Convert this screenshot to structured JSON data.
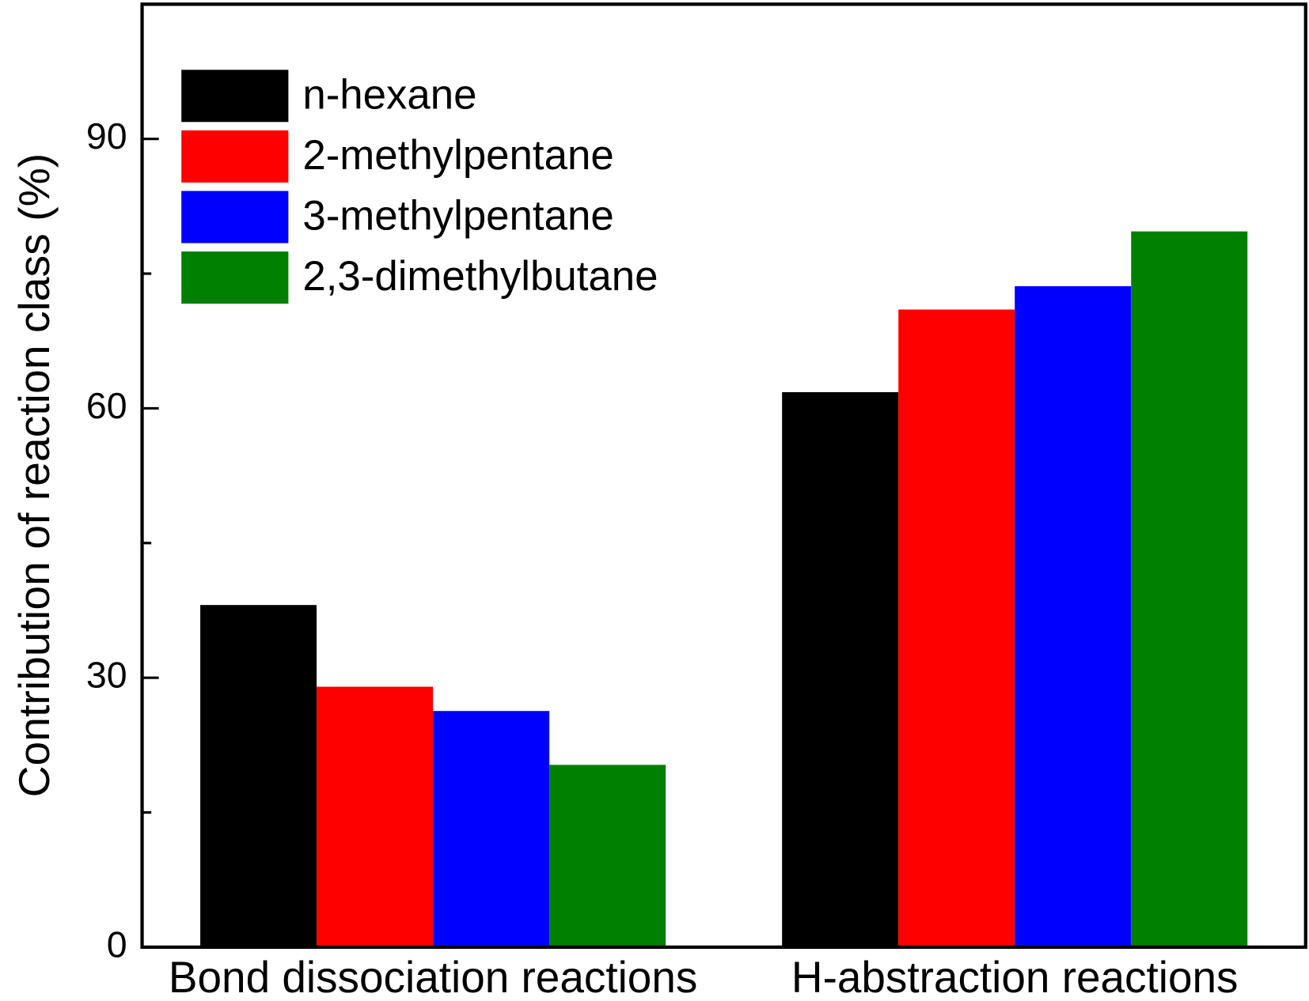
{
  "chart_data": {
    "type": "bar",
    "y_label": "Contribution of reaction class (%)",
    "categories": [
      "Bond dissociation reactions",
      "H-abstraction reactions"
    ],
    "series": [
      {
        "name": "n-hexane",
        "color": "#000000",
        "values": [
          38.1,
          61.8
        ]
      },
      {
        "name": "2-methylpentane",
        "color": "#ff0000",
        "values": [
          29.0,
          71.0
        ]
      },
      {
        "name": "3-methylpentane",
        "color": "#0000ff",
        "values": [
          26.3,
          73.6
        ]
      },
      {
        "name": "2,3-dimethylbutane",
        "color": "#008000",
        "values": [
          20.3,
          79.7
        ]
      }
    ],
    "ylim": [
      0,
      105
    ],
    "yticks": [
      0,
      30,
      60,
      90
    ],
    "minor_yticks": [
      15,
      45,
      75
    ],
    "legend": "upper-left"
  }
}
